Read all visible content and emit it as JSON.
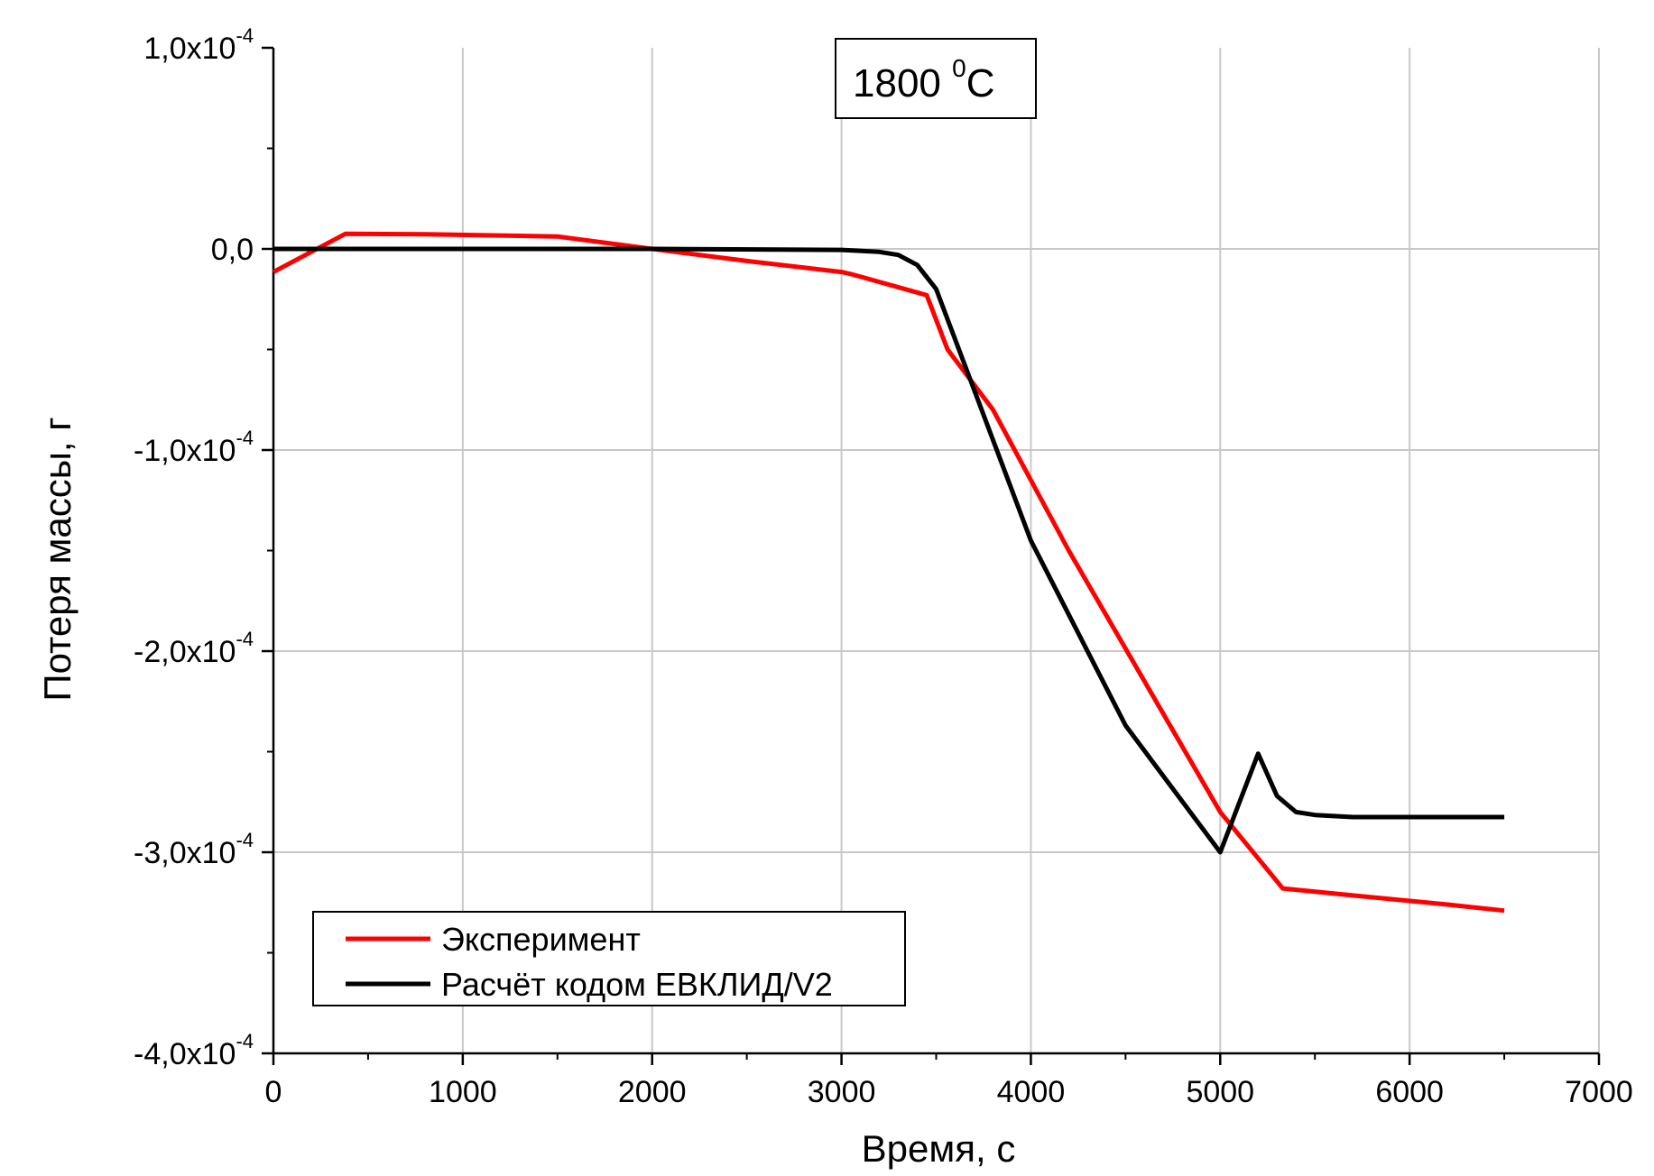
{
  "chart_data": {
    "type": "line",
    "title": "",
    "annotation": {
      "value": "1800 ",
      "superscript": "0",
      "unit": "C"
    },
    "xlabel": "Время, с",
    "ylabel": "Потеря массы, г",
    "xlim": [
      0,
      7000
    ],
    "ylim": [
      -0.0004,
      0.0001
    ],
    "x_ticks": [
      {
        "value": 0,
        "label": "0"
      },
      {
        "value": 1000,
        "label": "1000"
      },
      {
        "value": 2000,
        "label": "2000"
      },
      {
        "value": 3000,
        "label": "3000"
      },
      {
        "value": 4000,
        "label": "4000"
      },
      {
        "value": 5000,
        "label": "5000"
      },
      {
        "value": 6000,
        "label": "6000"
      },
      {
        "value": 7000,
        "label": "7000"
      }
    ],
    "y_ticks": [
      {
        "value": 0.0001,
        "mantissa": "1,0x10",
        "exponent": "-4"
      },
      {
        "value": 0,
        "mantissa": "0,0",
        "exponent": ""
      },
      {
        "value": -0.0001,
        "mantissa": "-1,0x10",
        "exponent": "-4"
      },
      {
        "value": -0.0002,
        "mantissa": "-2,0x10",
        "exponent": "-4"
      },
      {
        "value": -0.0003,
        "mantissa": "-3,0x10",
        "exponent": "-4"
      },
      {
        "value": -0.0004,
        "mantissa": "-4,0x10",
        "exponent": "-4"
      }
    ],
    "grid": true,
    "legend_position": "bottom-left",
    "series": [
      {
        "name": "Эксперимент",
        "color": "#ff0000",
        "x": [
          0,
          380,
          800,
          1300,
          1500,
          2000,
          2500,
          3000,
          3050,
          3450,
          3560,
          3800,
          4200,
          4600,
          5000,
          5330,
          5700,
          6200,
          6500
        ],
        "y": [
          -1.15e-05,
          7.5e-06,
          7.3e-06,
          6.5e-06,
          6.2e-06,
          0.0,
          -6e-06,
          -1.15e-05,
          -1.25e-05,
          -2.3e-05,
          -5e-05,
          -8e-05,
          -0.00015,
          -0.000215,
          -0.00028,
          -0.000318,
          -0.0003215,
          -0.000326,
          -0.000329
        ]
      },
      {
        "name": "Расчёт кодом ЕВКЛИД/V2",
        "color": "#000000",
        "x": [
          0,
          1000,
          2000,
          3000,
          3200,
          3300,
          3400,
          3500,
          3580,
          3700,
          4000,
          4500,
          5000,
          5200,
          5300,
          5400,
          5500,
          5700,
          6000,
          6500
        ],
        "y": [
          0.0,
          0.0,
          0.0,
          -5e-07,
          -1.5e-06,
          -3e-06,
          -8e-06,
          -2e-05,
          -4e-05,
          -7e-05,
          -0.000145,
          -0.000237,
          -0.0003,
          -0.000251,
          -0.000272,
          -0.00028,
          -0.0002815,
          -0.0002825,
          -0.0002825,
          -0.0002825
        ]
      }
    ]
  }
}
